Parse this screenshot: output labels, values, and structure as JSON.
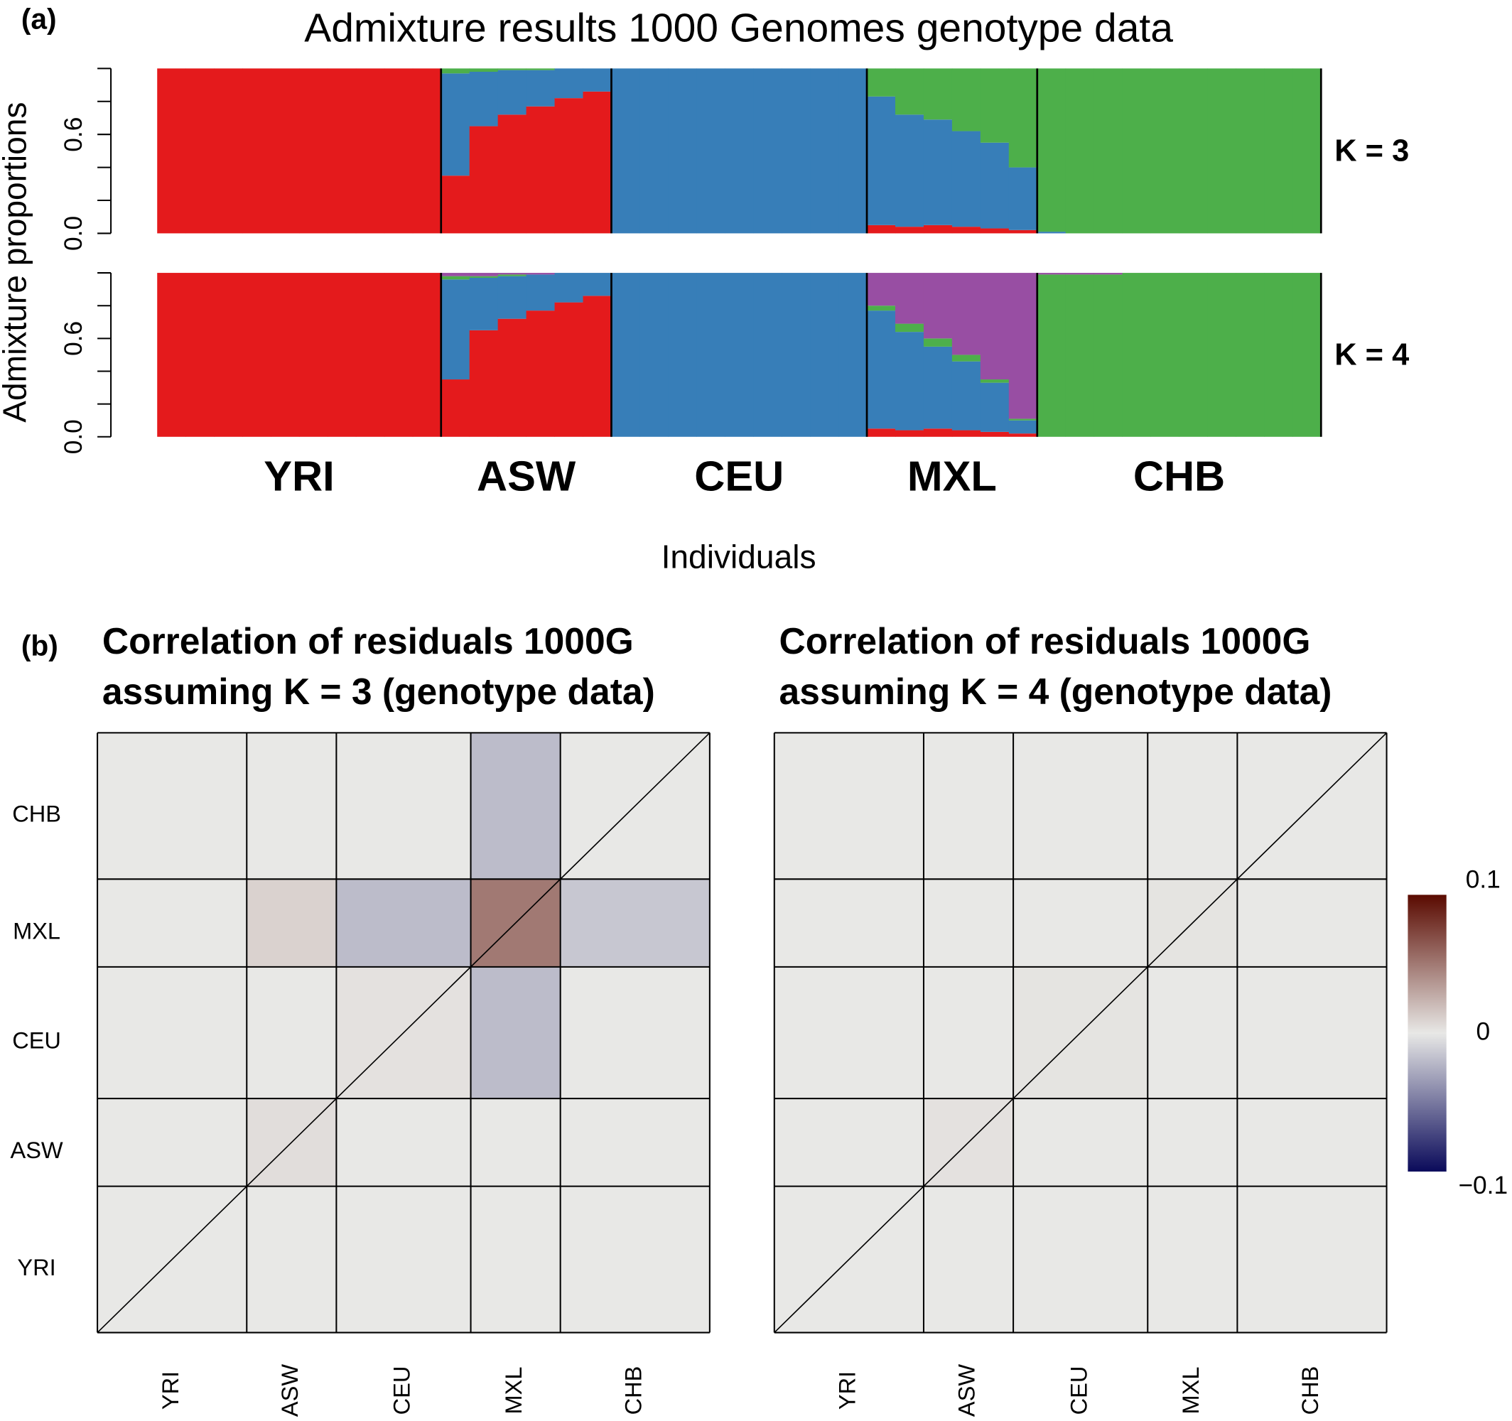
{
  "chart_data": [
    {
      "type": "stacked_bar",
      "panel_label": "(a)",
      "title": "Admixture results 1000 Genomes genotype data",
      "ylabel": "Admixture proportions",
      "xlabel": "Individuals",
      "annotation": "K = 3",
      "groups": [
        {
          "label": "YRI",
          "count": 10
        },
        {
          "label": "ASW",
          "count": 6
        },
        {
          "label": "CEU",
          "count": 9
        },
        {
          "label": "MXL",
          "count": 6
        },
        {
          "label": "CHB",
          "count": 10
        }
      ],
      "ylim": [
        0,
        1
      ],
      "yticks": [
        {
          "value": 0,
          "label": "0.0"
        },
        0.6
      ],
      "yticks_unlabeled": [
        0.2,
        0.4,
        0.8,
        1
      ],
      "series": [
        {
          "color": "#e41a1c",
          "values": [
            1,
            1,
            1,
            1,
            1,
            1,
            1,
            1,
            1,
            1,
            0.35,
            0.65,
            0.72,
            0.77,
            0.82,
            0.86,
            0,
            0,
            0,
            0,
            0,
            0,
            0,
            0,
            0,
            0.05,
            0.04,
            0.05,
            0.04,
            0.03,
            0.02,
            0,
            0,
            0,
            0,
            0,
            0,
            0,
            0,
            0,
            0
          ]
        },
        {
          "color": "#377eb8",
          "values": [
            0,
            0,
            0,
            0,
            0,
            0,
            0,
            0,
            0,
            0,
            0.62,
            0.33,
            0.27,
            0.22,
            0.18,
            0.14,
            1,
            1,
            1,
            1,
            1,
            1,
            1,
            1,
            1,
            0.78,
            0.68,
            0.64,
            0.58,
            0.52,
            0.38,
            0.01,
            0,
            0,
            0,
            0,
            0,
            0,
            0,
            0,
            0
          ]
        },
        {
          "color": "#4daf4a",
          "values": [
            0,
            0,
            0,
            0,
            0,
            0,
            0,
            0,
            0,
            0,
            0.03,
            0.02,
            0.01,
            0.01,
            0,
            0,
            0,
            0,
            0,
            0,
            0,
            0,
            0,
            0,
            0,
            0.17,
            0.28,
            0.31,
            0.38,
            0.45,
            0.6,
            0.99,
            1,
            1,
            1,
            1,
            1,
            1,
            1,
            1,
            1
          ]
        }
      ]
    },
    {
      "type": "stacked_bar",
      "annotation": "K = 4",
      "ylim": [
        0,
        1
      ],
      "yticks": [
        {
          "value": 0,
          "label": "0.0"
        },
        0.6
      ],
      "yticks_unlabeled": [
        0.2,
        0.4,
        0.8,
        1
      ],
      "series": [
        {
          "color": "#e41a1c",
          "values": [
            1,
            1,
            1,
            1,
            1,
            1,
            1,
            1,
            1,
            1,
            0.35,
            0.65,
            0.72,
            0.77,
            0.82,
            0.86,
            0,
            0,
            0,
            0,
            0,
            0,
            0,
            0,
            0,
            0.05,
            0.04,
            0.05,
            0.04,
            0.03,
            0.02,
            0,
            0,
            0,
            0,
            0,
            0,
            0,
            0,
            0,
            0
          ]
        },
        {
          "color": "#377eb8",
          "values": [
            0,
            0,
            0,
            0,
            0,
            0,
            0,
            0,
            0,
            0,
            0.61,
            0.32,
            0.26,
            0.22,
            0.18,
            0.14,
            1,
            1,
            1,
            1,
            1,
            1,
            1,
            1,
            1,
            0.72,
            0.6,
            0.5,
            0.42,
            0.3,
            0.08,
            0,
            0,
            0,
            0,
            0,
            0,
            0,
            0,
            0,
            0
          ]
        },
        {
          "color": "#4daf4a",
          "values": [
            0,
            0,
            0,
            0,
            0,
            0,
            0,
            0,
            0,
            0,
            0.02,
            0.01,
            0.01,
            0,
            0,
            0,
            0,
            0,
            0,
            0,
            0,
            0,
            0,
            0,
            0,
            0.03,
            0.05,
            0.05,
            0.04,
            0.02,
            0.01,
            0.99,
            0.99,
            0.99,
            1,
            1,
            1,
            1,
            1,
            1,
            1
          ]
        },
        {
          "color": "#984ea3",
          "values": [
            0,
            0,
            0,
            0,
            0,
            0,
            0,
            0,
            0,
            0,
            0.02,
            0.02,
            0.01,
            0.01,
            0,
            0,
            0,
            0,
            0,
            0,
            0,
            0,
            0,
            0,
            0,
            0.2,
            0.31,
            0.4,
            0.5,
            0.65,
            0.89,
            0.01,
            0.01,
            0.01,
            0,
            0,
            0,
            0,
            0,
            0,
            0
          ]
        }
      ]
    },
    {
      "type": "heatmap",
      "panel_label": "(b)",
      "title": [
        "Correlation of residuals 1000G",
        "assuming K = 3 (genotype data)"
      ],
      "categories": [
        "YRI",
        "ASW",
        "CEU",
        "MXL",
        "CHB"
      ],
      "values": [
        [
          0,
          0,
          0,
          0,
          0
        ],
        [
          0,
          0.005,
          0,
          0,
          0
        ],
        [
          0,
          0,
          0.003,
          -0.02,
          0
        ],
        [
          0,
          0.01,
          -0.02,
          0.05,
          -0.015
        ],
        [
          0,
          0,
          0,
          -0.02,
          0
        ]
      ]
    },
    {
      "type": "heatmap",
      "title": [
        "Correlation of residuals 1000G",
        "assuming K = 4 (genotype data)"
      ],
      "categories": [
        "YRI",
        "ASW",
        "CEU",
        "MXL",
        "CHB"
      ],
      "values": [
        [
          0,
          0,
          0,
          0,
          0
        ],
        [
          0,
          0.003,
          0,
          0,
          0
        ],
        [
          0,
          0,
          0.002,
          0,
          0
        ],
        [
          0,
          0,
          0,
          0.002,
          0
        ],
        [
          0,
          0,
          0,
          0,
          0
        ]
      ]
    }
  ],
  "colorbar": {
    "lim": [
      -0.1,
      0.1
    ],
    "ticks": [
      0.1,
      0,
      {
        "value": -0.1,
        "label": "−0.1"
      }
    ],
    "colors": [
      "#0a0a5a",
      "#e8e8e6",
      "#5a0a00"
    ]
  }
}
